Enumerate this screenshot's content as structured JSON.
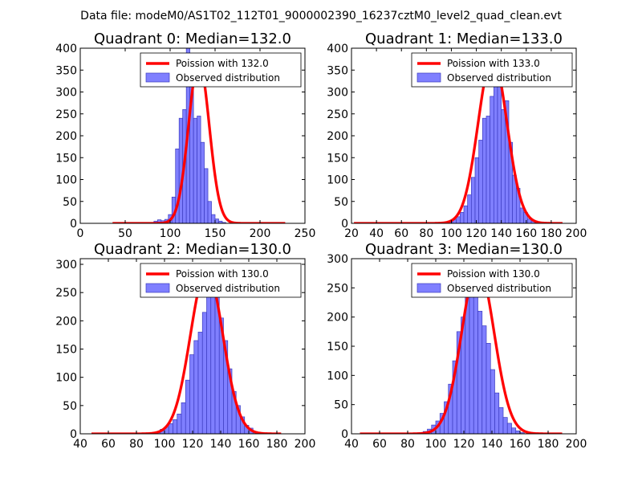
{
  "figure": {
    "suptitle": "Data file: modeM0/AS1T02_112T01_9000002390_16237cztM0_level2_quad_clean.evt"
  },
  "colors": {
    "bar_fill": "#7f7fff",
    "bar_edge": "#3b3bbf",
    "curve": "#ff0000",
    "axis": "#000000",
    "background": "#ffffff"
  },
  "chart_data": [
    {
      "type": "bar",
      "title": "Quadrant 0: Median=132.0",
      "xlim": [
        0,
        250
      ],
      "ylim": [
        0,
        400
      ],
      "xticks": [
        0,
        50,
        100,
        150,
        200,
        250
      ],
      "yticks": [
        0,
        50,
        100,
        150,
        200,
        250,
        300,
        350,
        400
      ],
      "legend": {
        "position": "top-right",
        "entries": [
          "Poission with 132.0",
          "Observed distribution"
        ]
      },
      "bin_start": 82,
      "bin_width": 4,
      "hist": [
        5,
        8,
        6,
        9,
        20,
        60,
        170,
        240,
        260,
        400,
        330,
        240,
        245,
        185,
        125,
        50,
        20,
        10,
        5,
        2
      ],
      "poisson": {
        "mean": 132.0,
        "peak": 370,
        "sigma": 11.5,
        "x_range": [
          36,
          228
        ]
      }
    },
    {
      "type": "bar",
      "title": "Quadrant 1: Median=133.0",
      "xlim": [
        20,
        200
      ],
      "ylim": [
        0,
        400
      ],
      "xticks": [
        20,
        40,
        60,
        80,
        100,
        120,
        140,
        160,
        180,
        200
      ],
      "yticks": [
        0,
        50,
        100,
        150,
        200,
        250,
        300,
        350,
        400
      ],
      "legend": {
        "position": "top-right",
        "entries": [
          "Poission with 133.0",
          "Observed distribution"
        ]
      },
      "bin_start": 92,
      "bin_width": 3,
      "hist": [
        2,
        3,
        5,
        8,
        15,
        25,
        40,
        65,
        105,
        150,
        190,
        240,
        245,
        290,
        360,
        380,
        260,
        280,
        185,
        110,
        80,
        35,
        25,
        10,
        5,
        2
      ],
      "poisson": {
        "mean": 133.0,
        "peak": 380,
        "sigma": 11.5,
        "x_range": [
          22,
          189
        ]
      }
    },
    {
      "type": "bar",
      "title": "Quadrant 2: Median=130.0",
      "xlim": [
        40,
        200
      ],
      "ylim": [
        0,
        310
      ],
      "xticks": [
        40,
        60,
        80,
        100,
        120,
        140,
        160,
        180,
        200
      ],
      "yticks": [
        0,
        50,
        100,
        150,
        200,
        250,
        300
      ],
      "legend": {
        "position": "top-right",
        "entries": [
          "Poission with 130.0",
          "Observed distribution"
        ]
      },
      "bin_start": 94,
      "bin_width": 3,
      "hist": [
        3,
        8,
        12,
        18,
        25,
        35,
        55,
        95,
        140,
        165,
        180,
        215,
        260,
        300,
        250,
        205,
        165,
        115,
        75,
        50,
        30,
        15,
        10,
        4
      ],
      "poisson": {
        "mean": 130.0,
        "peak": 290,
        "sigma": 11.5,
        "x_range": [
          48,
          183
        ]
      }
    },
    {
      "type": "bar",
      "title": "Quadrant 3: Median=130.0",
      "xlim": [
        40,
        200
      ],
      "ylim": [
        0,
        300
      ],
      "xticks": [
        40,
        60,
        80,
        100,
        120,
        140,
        160,
        180,
        200
      ],
      "yticks": [
        0,
        50,
        100,
        150,
        200,
        250,
        300
      ],
      "legend": {
        "position": "top-right",
        "entries": [
          "Poission with 130.0",
          "Observed distribution"
        ]
      },
      "bin_start": 88,
      "bin_width": 3,
      "hist": [
        2,
        4,
        8,
        15,
        22,
        35,
        55,
        85,
        125,
        175,
        200,
        260,
        290,
        270,
        210,
        185,
        155,
        110,
        70,
        45,
        28,
        18,
        10,
        5,
        2
      ],
      "poisson": {
        "mean": 130.0,
        "peak": 288,
        "sigma": 11.5,
        "x_range": [
          46,
          190
        ]
      }
    }
  ]
}
